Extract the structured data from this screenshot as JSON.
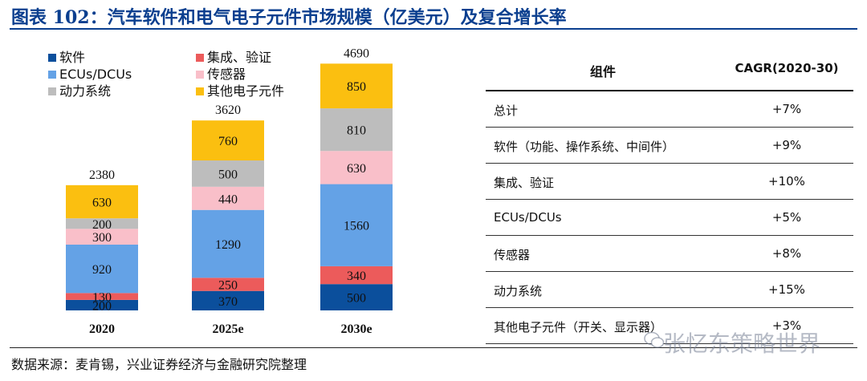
{
  "title": "图表 102：汽车软件和电气电子元件市场规模（亿美元）及复合增长率",
  "source": "数据来源：麦肯锡，兴业证券经济与金融研究院整理",
  "watermark": "张忆东策略世界",
  "chart_data": {
    "type": "bar",
    "stacked": true,
    "categories": [
      "2020",
      "2025e",
      "2030e"
    ],
    "totals": [
      2380,
      3620,
      4690
    ],
    "series": [
      {
        "name": "软件",
        "color": "#0b4f9c",
        "values": [
          200,
          370,
          500
        ]
      },
      {
        "name": "集成、验证",
        "color": "#ec5b5b",
        "values": [
          130,
          250,
          340
        ]
      },
      {
        "name": "ECUs/DCUs",
        "color": "#64a2e6",
        "values": [
          920,
          1290,
          1560
        ]
      },
      {
        "name": "传感器",
        "color": "#f9bfc9",
        "values": [
          300,
          440,
          630
        ]
      },
      {
        "name": "动力系统",
        "color": "#bdbdbd",
        "values": [
          200,
          500,
          810
        ]
      },
      {
        "name": "其他电子元件",
        "color": "#fbbf10",
        "values": [
          630,
          760,
          850
        ]
      }
    ],
    "legend_position": "top-left",
    "grid": false
  },
  "table": {
    "headers": [
      "组件",
      "CAGR(2020-30)"
    ],
    "rows": [
      {
        "name": "总计",
        "cagr": "+7%"
      },
      {
        "name": "软件（功能、操作系统、中间件）",
        "cagr": "+9%"
      },
      {
        "name": "集成、验证",
        "cagr": "+10%"
      },
      {
        "name": "ECUs/DCUs",
        "cagr": "+5%"
      },
      {
        "name": "传感器",
        "cagr": "+8%"
      },
      {
        "name": "动力系统",
        "cagr": "+15%"
      },
      {
        "name": "其他电子元件（开关、显示器）",
        "cagr": "+3%"
      }
    ]
  }
}
